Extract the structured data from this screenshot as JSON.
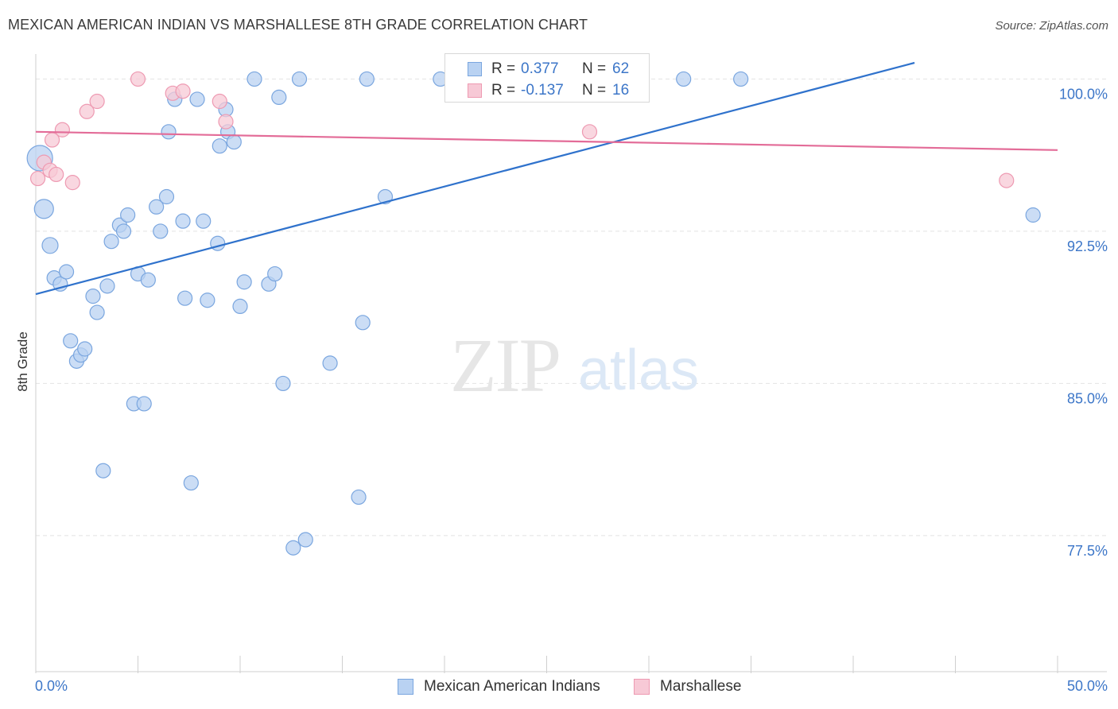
{
  "title": "MEXICAN AMERICAN INDIAN VS MARSHALLESE 8TH GRADE CORRELATION CHART",
  "source": "Source: ZipAtlas.com",
  "watermark": {
    "zip": "ZIP",
    "atlas": "atlas"
  },
  "colors": {
    "blue_fill": "#b9d2f2",
    "blue_stroke": "#7aa6df",
    "blue_line": "#2f72cc",
    "pink_fill": "#f7c9d6",
    "pink_stroke": "#ee9ab2",
    "pink_line": "#e36c98",
    "axis_label": "#3c76c8",
    "grid": "#e2e2e2"
  },
  "legend_top": {
    "rows": [
      {
        "r_label": "R =",
        "r_value": "0.377",
        "n_label": "N =",
        "n_value": "62"
      },
      {
        "r_label": "R =",
        "r_value": "-0.137",
        "n_label": "N =",
        "n_value": "16"
      }
    ]
  },
  "legend_bottom": [
    "Mexican American Indians",
    "Marshallese"
  ],
  "chart_data": {
    "type": "scatter",
    "title": "MEXICAN AMERICAN INDIAN VS MARSHALLESE 8TH GRADE CORRELATION CHART",
    "xlabel": "",
    "ylabel": "8th Grade",
    "xlim": [
      0,
      50
    ],
    "ylim": [
      70.8,
      100.8
    ],
    "x_ticks": [
      0,
      5,
      10,
      15,
      20,
      25,
      30,
      35,
      40,
      45,
      50
    ],
    "x_tick_labels": [
      {
        "value": 0,
        "label": "0.0%"
      },
      {
        "value": 50,
        "label": "50.0%"
      }
    ],
    "y_tick_labels": [
      {
        "value": 100.0,
        "label": "100.0%"
      },
      {
        "value": 92.5,
        "label": "92.5%"
      },
      {
        "value": 85.0,
        "label": "85.0%"
      },
      {
        "value": 77.5,
        "label": "77.5%"
      }
    ],
    "grid": true,
    "series": [
      {
        "name": "Mexican American Indians",
        "trend": {
          "x": [
            0,
            43
          ],
          "y": [
            89.4,
            100.8
          ]
        },
        "points": [
          [
            0.2,
            96.1,
            16
          ],
          [
            0.4,
            93.6,
            12
          ],
          [
            0.7,
            91.8,
            10
          ],
          [
            0.9,
            90.2,
            9
          ],
          [
            1.2,
            89.9,
            9
          ],
          [
            1.5,
            90.5,
            9
          ],
          [
            1.7,
            87.1,
            9
          ],
          [
            2.0,
            86.1,
            9
          ],
          [
            2.2,
            86.4,
            9
          ],
          [
            2.4,
            86.7,
            9
          ],
          [
            2.8,
            89.3,
            9
          ],
          [
            3.0,
            88.5,
            9
          ],
          [
            3.3,
            80.7,
            9
          ],
          [
            3.5,
            89.8,
            9
          ],
          [
            3.7,
            92.0,
            9
          ],
          [
            4.1,
            92.8,
            9
          ],
          [
            4.3,
            92.5,
            9
          ],
          [
            4.5,
            93.3,
            9
          ],
          [
            4.8,
            84.0,
            9
          ],
          [
            5.3,
            84.0,
            9
          ],
          [
            5.0,
            90.4,
            9
          ],
          [
            5.5,
            90.1,
            9
          ],
          [
            5.9,
            93.7,
            9
          ],
          [
            6.1,
            92.5,
            9
          ],
          [
            6.4,
            94.2,
            9
          ],
          [
            6.5,
            97.4,
            9
          ],
          [
            6.8,
            99.0,
            9
          ],
          [
            7.2,
            93.0,
            9
          ],
          [
            7.3,
            89.2,
            9
          ],
          [
            7.6,
            80.1,
            9
          ],
          [
            7.9,
            99.0,
            9
          ],
          [
            8.2,
            93.0,
            9
          ],
          [
            8.4,
            89.1,
            9
          ],
          [
            8.9,
            91.9,
            9
          ],
          [
            9.0,
            96.7,
            9
          ],
          [
            9.3,
            98.5,
            9
          ],
          [
            9.4,
            97.4,
            9
          ],
          [
            9.7,
            96.9,
            9
          ],
          [
            10.0,
            88.8,
            9
          ],
          [
            10.2,
            90.0,
            9
          ],
          [
            10.7,
            100.0,
            9
          ],
          [
            11.4,
            89.9,
            9
          ],
          [
            11.7,
            90.4,
            9
          ],
          [
            11.9,
            99.1,
            9
          ],
          [
            12.1,
            85.0,
            9
          ],
          [
            12.6,
            76.9,
            9
          ],
          [
            12.9,
            100.0,
            9
          ],
          [
            13.2,
            77.3,
            9
          ],
          [
            14.4,
            86.0,
            9
          ],
          [
            15.8,
            79.4,
            9
          ],
          [
            16.0,
            88.0,
            9
          ],
          [
            16.2,
            100.0,
            9
          ],
          [
            17.1,
            94.2,
            9
          ],
          [
            19.8,
            100.0,
            9
          ],
          [
            22.3,
            100.0,
            9
          ],
          [
            23.0,
            100.0,
            9
          ],
          [
            23.8,
            100.0,
            9
          ],
          [
            26.4,
            100.0,
            9
          ],
          [
            27.0,
            100.0,
            9
          ],
          [
            31.7,
            100.0,
            9
          ],
          [
            34.5,
            100.0,
            9
          ],
          [
            48.8,
            93.3,
            9
          ]
        ]
      },
      {
        "name": "Marshallese",
        "trend": {
          "x": [
            0,
            50
          ],
          "y": [
            97.4,
            96.5
          ]
        },
        "points": [
          [
            0.1,
            95.1,
            9
          ],
          [
            0.4,
            95.9,
            9
          ],
          [
            0.7,
            95.5,
            9
          ],
          [
            0.8,
            97.0,
            9
          ],
          [
            1.0,
            95.3,
            9
          ],
          [
            1.3,
            97.5,
            9
          ],
          [
            1.8,
            94.9,
            9
          ],
          [
            2.5,
            98.4,
            9
          ],
          [
            3.0,
            98.9,
            9
          ],
          [
            5.0,
            100.0,
            9
          ],
          [
            6.7,
            99.3,
            9
          ],
          [
            7.2,
            99.4,
            9
          ],
          [
            9.0,
            98.9,
            9
          ],
          [
            9.3,
            97.9,
            9
          ],
          [
            27.1,
            97.4,
            9
          ],
          [
            47.5,
            95.0,
            9
          ]
        ]
      }
    ]
  }
}
